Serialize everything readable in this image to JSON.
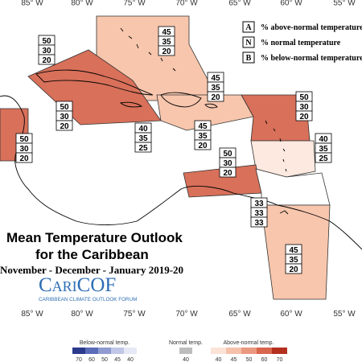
{
  "longitude_labels_top": [
    "85° W",
    "80° W",
    "75° W",
    "70° W",
    "65° W",
    "60° W",
    "55° W"
  ],
  "longitude_labels_bottom": [
    "85° W",
    "80° W",
    "75° W",
    "70° W",
    "65° W",
    "60° W",
    "55° W"
  ],
  "legend": {
    "rows": [
      {
        "key": "A",
        "text": "% above-normal temperature"
      },
      {
        "key": "N",
        "text": "% normal temperature"
      },
      {
        "key": "B",
        "text": "% below-normal temperature"
      }
    ]
  },
  "title": {
    "line1": "Mean Temperature Outlook",
    "line2": "for the Caribbean",
    "subtitle": "November - December - January 2019-20"
  },
  "logo": {
    "name": "CariCOF",
    "tagline": "CARIBBEAN CLIMATE OUTLOOK FORUM"
  },
  "regions": [
    {
      "above": 45,
      "normal": 35,
      "below": 20,
      "color": "#f7c6ad"
    },
    {
      "above": 50,
      "normal": 30,
      "below": 20,
      "color": "#d8705a"
    },
    {
      "above": 50,
      "normal": 30,
      "below": 20,
      "color": "#d8705a"
    },
    {
      "above": 50,
      "normal": 30,
      "below": 20,
      "color": "#d8705a"
    },
    {
      "above": 45,
      "normal": 35,
      "below": 20,
      "color": "#f7c6ad"
    },
    {
      "above": 40,
      "normal": 35,
      "below": 25,
      "color": "#fde9df"
    },
    {
      "above": 45,
      "normal": 35,
      "below": 20,
      "color": "#f7c6ad"
    },
    {
      "above": 50,
      "normal": 30,
      "below": 20,
      "color": "#d8705a"
    },
    {
      "above": 40,
      "normal": 35,
      "below": 25,
      "color": "#fde9df"
    },
    {
      "above": 50,
      "normal": 30,
      "below": 20,
      "color": "#d8705a"
    },
    {
      "above": 33,
      "normal": 33,
      "below": 33,
      "color": "#ffffff"
    },
    {
      "above": 45,
      "normal": 35,
      "below": 20,
      "color": "#f7c6ad"
    }
  ],
  "colorbar": {
    "below_label": "Below-normal temp.",
    "normal_label": "Normal temp.",
    "above_label": "Above-normal temp.",
    "below_ticks": [
      70,
      60,
      50,
      45,
      40
    ],
    "below_colors": [
      "#2b3a8c",
      "#5a6bb8",
      "#8f9bd0",
      "#c0c7e6",
      "#e6e9f5"
    ],
    "normal_ticks": [
      40
    ],
    "normal_colors": [
      "#bdbdbd"
    ],
    "above_ticks": [
      40,
      45,
      50,
      60,
      70
    ],
    "above_colors": [
      "#fbe3d8",
      "#f6c1ab",
      "#eb9880",
      "#d8664d",
      "#b3301f"
    ]
  }
}
